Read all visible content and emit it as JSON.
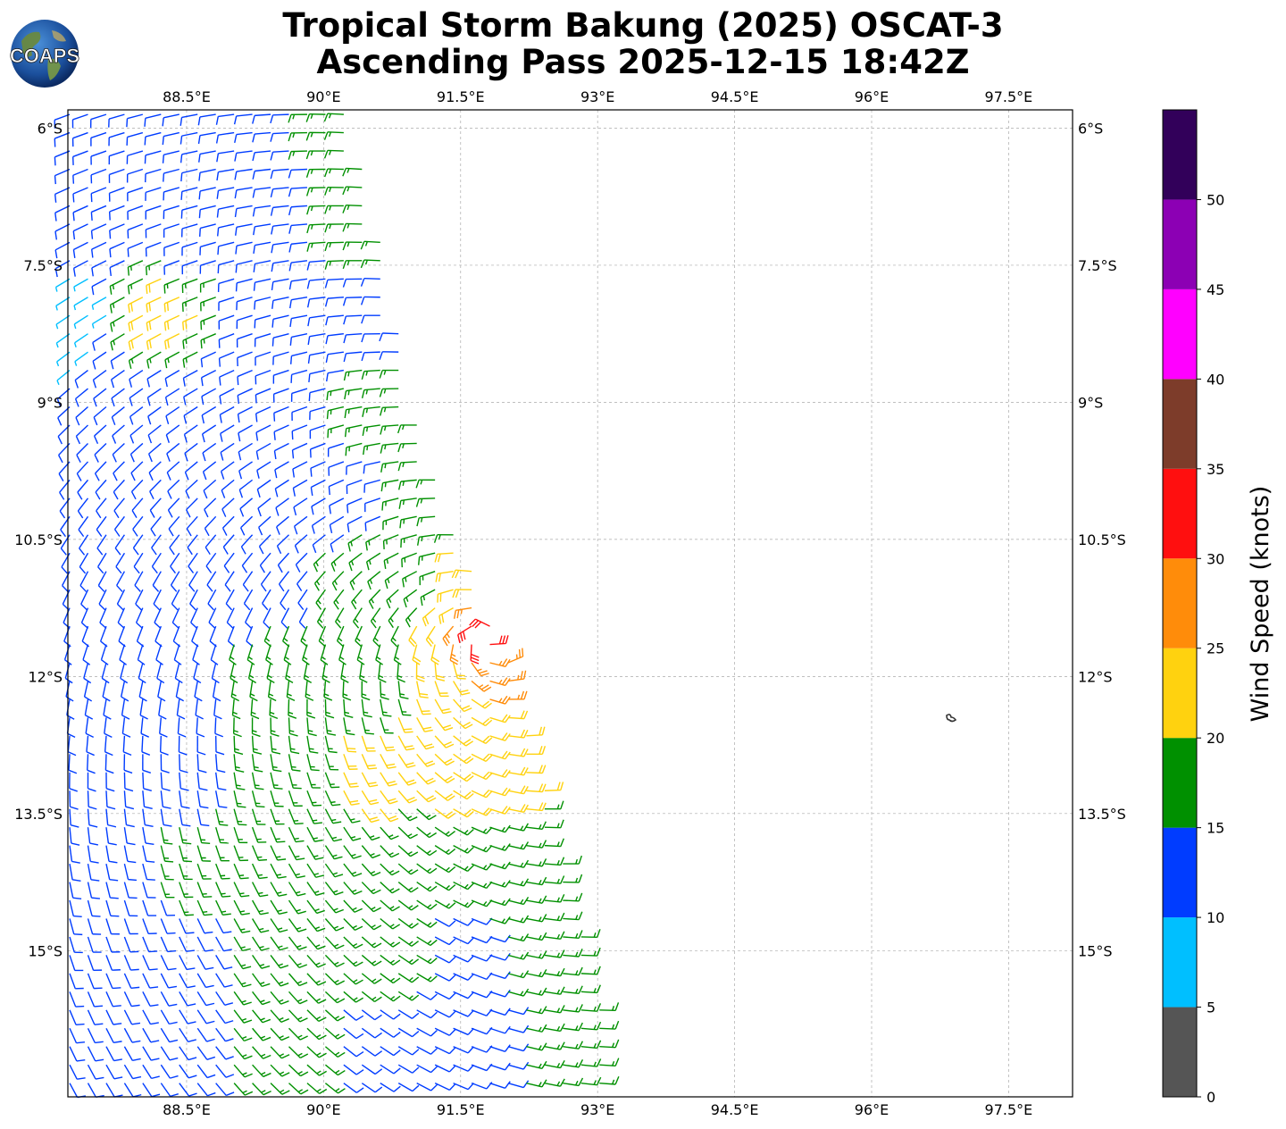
{
  "title": {
    "line1": "Tropical Storm Bakung (2025) OSCAT-3",
    "line2": "Ascending Pass 2025-12-15 18:42Z"
  },
  "logo": {
    "text": "COAPS"
  },
  "chart_data": {
    "type": "wind-barb-map",
    "lon_ticks": [
      "88.5°E",
      "90°E",
      "91.5°E",
      "93°E",
      "94.5°E",
      "96°E",
      "97.5°E"
    ],
    "lat_ticks": [
      "6°S",
      "7.5°S",
      "9°S",
      "10.5°S",
      "12°S",
      "13.5°S",
      "15°S"
    ],
    "lon_range": [
      87.2,
      98.2
    ],
    "lat_range": [
      -16.6,
      -5.8
    ],
    "grid": true,
    "colorbar": {
      "label": "Wind Speed (knots)",
      "ticks": [
        "0",
        "5",
        "10",
        "15",
        "20",
        "25",
        "30",
        "35",
        "40",
        "45",
        "50"
      ],
      "bins": [
        {
          "min": 0,
          "max": 5,
          "color": "#555555"
        },
        {
          "min": 5,
          "max": 10,
          "color": "#00bfff"
        },
        {
          "min": 10,
          "max": 15,
          "color": "#003cff"
        },
        {
          "min": 15,
          "max": 20,
          "color": "#009000"
        },
        {
          "min": 20,
          "max": 25,
          "color": "#ffd20f"
        },
        {
          "min": 25,
          "max": 30,
          "color": "#ff8c0a"
        },
        {
          "min": 30,
          "max": 35,
          "color": "#ff0f0f"
        },
        {
          "min": 35,
          "max": 40,
          "color": "#7d3c2a"
        },
        {
          "min": 40,
          "max": 45,
          "color": "#ff00ff"
        },
        {
          "min": 45,
          "max": 50,
          "color": "#8c00b4"
        },
        {
          "min": 50,
          "max": 55,
          "color": "#32005a"
        }
      ]
    },
    "storm_center": {
      "lon": 91.8,
      "lat": -11.6
    },
    "swath": {
      "east_edge": [
        {
          "lat": -5.8,
          "lon": 90.3
        },
        {
          "lat": -7.5,
          "lon": 90.7
        },
        {
          "lat": -9.0,
          "lon": 91.0
        },
        {
          "lat": -10.5,
          "lon": 91.5
        },
        {
          "lat": -12.0,
          "lon": 92.1
        },
        {
          "lat": -13.5,
          "lon": 92.5
        },
        {
          "lat": -15.0,
          "lon": 92.9
        },
        {
          "lat": -16.6,
          "lon": 93.2
        }
      ]
    },
    "wind_samples": [
      {
        "lat": -6.0,
        "lon": 88.0,
        "speed_kt": 12
      },
      {
        "lat": -6.0,
        "lon": 90.0,
        "speed_kt": 16
      },
      {
        "lat": -7.8,
        "lon": 87.3,
        "speed_kt": 8
      },
      {
        "lat": -7.8,
        "lon": 88.7,
        "speed_kt": 22
      },
      {
        "lat": -10.5,
        "lon": 91.4,
        "speed_kt": 18
      },
      {
        "lat": -11.0,
        "lon": 91.5,
        "speed_kt": 23
      },
      {
        "lat": -11.5,
        "lon": 91.8,
        "speed_kt": 33
      },
      {
        "lat": -12.0,
        "lon": 91.9,
        "speed_kt": 27
      },
      {
        "lat": -12.5,
        "lon": 91.5,
        "speed_kt": 22
      },
      {
        "lat": -14.0,
        "lon": 89.5,
        "speed_kt": 17
      },
      {
        "lat": -15.5,
        "lon": 88.0,
        "speed_kt": 13
      }
    ],
    "barb_cells": [
      {
        "lat": -6.0,
        "lon": 87.5,
        "speed_kt": 12
      },
      {
        "lat": -6.0,
        "lon": 88.5,
        "speed_kt": 13
      },
      {
        "lat": -6.0,
        "lon": 89.5,
        "speed_kt": 14
      },
      {
        "lat": -6.0,
        "lon": 90.2,
        "speed_kt": 17
      },
      {
        "lat": -7.0,
        "lon": 87.5,
        "speed_kt": 11
      },
      {
        "lat": -7.0,
        "lon": 88.5,
        "speed_kt": 12
      },
      {
        "lat": -7.0,
        "lon": 89.5,
        "speed_kt": 13
      },
      {
        "lat": -7.0,
        "lon": 90.4,
        "speed_kt": 17
      },
      {
        "lat": -8.0,
        "lon": 87.3,
        "speed_kt": 8
      },
      {
        "lat": -8.0,
        "lon": 88.2,
        "speed_kt": 22
      },
      {
        "lat": -8.0,
        "lon": 89.5,
        "speed_kt": 12
      },
      {
        "lat": -8.0,
        "lon": 90.6,
        "speed_kt": 13
      },
      {
        "lat": -9.0,
        "lon": 87.5,
        "speed_kt": 10
      },
      {
        "lat": -9.0,
        "lon": 88.5,
        "speed_kt": 12
      },
      {
        "lat": -9.0,
        "lon": 89.5,
        "speed_kt": 12
      },
      {
        "lat": -9.0,
        "lon": 90.7,
        "speed_kt": 17
      },
      {
        "lat": -10.0,
        "lon": 87.5,
        "speed_kt": 11
      },
      {
        "lat": -10.0,
        "lon": 88.5,
        "speed_kt": 12
      },
      {
        "lat": -10.0,
        "lon": 89.5,
        "speed_kt": 13
      },
      {
        "lat": -10.0,
        "lon": 90.5,
        "speed_kt": 14
      },
      {
        "lat": -10.0,
        "lon": 91.2,
        "speed_kt": 17
      },
      {
        "lat": -11.0,
        "lon": 87.5,
        "speed_kt": 12
      },
      {
        "lat": -11.0,
        "lon": 88.5,
        "speed_kt": 13
      },
      {
        "lat": -11.0,
        "lon": 89.5,
        "speed_kt": 14
      },
      {
        "lat": -11.0,
        "lon": 90.5,
        "speed_kt": 16
      },
      {
        "lat": -11.0,
        "lon": 91.3,
        "speed_kt": 19
      },
      {
        "lat": -11.0,
        "lon": 91.6,
        "speed_kt": 23
      },
      {
        "lat": -11.5,
        "lon": 91.8,
        "speed_kt": 33
      },
      {
        "lat": -12.0,
        "lon": 87.5,
        "speed_kt": 12
      },
      {
        "lat": -12.0,
        "lon": 88.5,
        "speed_kt": 14
      },
      {
        "lat": -12.0,
        "lon": 89.5,
        "speed_kt": 17
      },
      {
        "lat": -12.0,
        "lon": 90.5,
        "speed_kt": 18
      },
      {
        "lat": -12.0,
        "lon": 91.3,
        "speed_kt": 22
      },
      {
        "lat": -12.0,
        "lon": 91.9,
        "speed_kt": 27
      },
      {
        "lat": -13.0,
        "lon": 87.5,
        "speed_kt": 12
      },
      {
        "lat": -13.0,
        "lon": 88.5,
        "speed_kt": 14
      },
      {
        "lat": -13.0,
        "lon": 89.5,
        "speed_kt": 17
      },
      {
        "lat": -13.0,
        "lon": 90.5,
        "speed_kt": 22
      },
      {
        "lat": -13.0,
        "lon": 91.5,
        "speed_kt": 22
      },
      {
        "lat": -13.0,
        "lon": 92.2,
        "speed_kt": 22
      },
      {
        "lat": -14.0,
        "lon": 87.5,
        "speed_kt": 12
      },
      {
        "lat": -14.0,
        "lon": 88.5,
        "speed_kt": 16
      },
      {
        "lat": -14.0,
        "lon": 89.5,
        "speed_kt": 17
      },
      {
        "lat": -14.0,
        "lon": 90.5,
        "speed_kt": 17
      },
      {
        "lat": -14.0,
        "lon": 91.5,
        "speed_kt": 17
      },
      {
        "lat": -14.0,
        "lon": 92.4,
        "speed_kt": 17
      },
      {
        "lat": -15.0,
        "lon": 87.5,
        "speed_kt": 13
      },
      {
        "lat": -15.0,
        "lon": 88.5,
        "speed_kt": 14
      },
      {
        "lat": -15.0,
        "lon": 89.5,
        "speed_kt": 17
      },
      {
        "lat": -15.0,
        "lon": 90.5,
        "speed_kt": 17
      },
      {
        "lat": -15.0,
        "lon": 91.5,
        "speed_kt": 14
      },
      {
        "lat": -15.0,
        "lon": 92.6,
        "speed_kt": 17
      },
      {
        "lat": -16.0,
        "lon": 87.5,
        "speed_kt": 13
      },
      {
        "lat": -16.0,
        "lon": 88.5,
        "speed_kt": 14
      },
      {
        "lat": -16.0,
        "lon": 89.5,
        "speed_kt": 17
      },
      {
        "lat": -16.0,
        "lon": 90.5,
        "speed_kt": 14
      },
      {
        "lat": -16.0,
        "lon": 91.5,
        "speed_kt": 13
      },
      {
        "lat": -16.0,
        "lon": 92.9,
        "speed_kt": 17
      }
    ]
  }
}
